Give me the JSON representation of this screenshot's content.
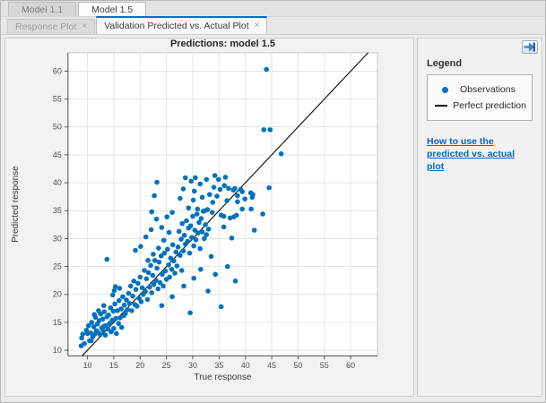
{
  "colors": {
    "accent": "#0072BD",
    "perfect_line": "#1a1a1a",
    "grid": "#e4e4e4",
    "axis": "#555555",
    "box_edge": "#c6c6c6",
    "tick_text": "#4e4e4e",
    "plot_bg": "#ffffff"
  },
  "tabs": {
    "model_tabs": [
      {
        "label": "Model 1.1",
        "active": false
      },
      {
        "label": "Model 1.5",
        "active": true
      }
    ],
    "doc_tabs": [
      {
        "label": "Response Plot",
        "close_glyph": "×",
        "active": false
      },
      {
        "label": "Validation Predicted vs. Actual Plot",
        "close_glyph": "×",
        "active": true
      }
    ]
  },
  "side_panel": {
    "legend_title": "Legend",
    "items": [
      {
        "marker": "dot",
        "label": "Observations"
      },
      {
        "marker": "line",
        "label": "Perfect prediction"
      }
    ],
    "help_link": "How to use the predicted vs. actual plot",
    "undock_icon": "undock-arrow"
  },
  "chart_data": {
    "type": "scatter",
    "title": "Predictions: model 1.5",
    "xlabel": "True response",
    "ylabel": "Predicted response",
    "xlim": [
      6.3,
      65.1
    ],
    "ylim": [
      9.0,
      63.3
    ],
    "xticks": [
      10,
      15,
      20,
      25,
      30,
      35,
      40,
      45,
      50,
      55,
      60
    ],
    "yticks": [
      10,
      15,
      20,
      25,
      30,
      35,
      40,
      45,
      50,
      55,
      60
    ],
    "grid": true,
    "legend": [
      "Observations",
      "Perfect prediction"
    ],
    "perfect_line": [
      [
        9.0,
        9.0
      ],
      [
        63.3,
        63.3
      ]
    ],
    "points": [
      [
        8.8,
        10.8
      ],
      [
        8.9,
        12.2
      ],
      [
        9.1,
        12.9
      ],
      [
        9.4,
        11.2
      ],
      [
        9.8,
        13.6
      ],
      [
        10.0,
        13.0
      ],
      [
        10.2,
        14.4
      ],
      [
        10.4,
        11.7
      ],
      [
        10.6,
        13.1
      ],
      [
        10.7,
        11.7
      ],
      [
        10.8,
        15.0
      ],
      [
        11.0,
        12.4
      ],
      [
        11.2,
        14.2
      ],
      [
        11.4,
        12.9
      ],
      [
        11.5,
        15.9
      ],
      [
        11.7,
        13.5
      ],
      [
        11.9,
        14.7
      ],
      [
        12.0,
        13.2
      ],
      [
        12.2,
        15.3
      ],
      [
        12.4,
        12.8
      ],
      [
        12.5,
        16.5
      ],
      [
        12.7,
        14.0
      ],
      [
        12.9,
        15.6
      ],
      [
        13.0,
        13.5
      ],
      [
        13.1,
        14.3
      ],
      [
        13.2,
        16.9
      ],
      [
        13.4,
        12.7
      ],
      [
        13.5,
        14.4
      ],
      [
        13.7,
        16.0
      ],
      [
        13.9,
        13.8
      ],
      [
        14.0,
        16.3
      ],
      [
        14.2,
        14.8
      ],
      [
        14.4,
        17.6
      ],
      [
        14.5,
        13.3
      ],
      [
        14.7,
        15.4
      ],
      [
        14.9,
        17.0
      ],
      [
        15.0,
        13.9
      ],
      [
        15.2,
        18.3
      ],
      [
        15.4,
        15.7
      ],
      [
        15.5,
        13.0
      ],
      [
        15.7,
        17.1
      ],
      [
        15.9,
        14.8
      ],
      [
        16.0,
        18.9
      ],
      [
        16.2,
        15.8
      ],
      [
        16.4,
        17.4
      ],
      [
        16.5,
        14.1
      ],
      [
        16.7,
        19.6
      ],
      [
        16.9,
        16.2
      ],
      [
        17.0,
        18.1
      ],
      [
        15.1,
        20.7
      ],
      [
        15.3,
        21.4
      ],
      [
        14.8,
        19.9
      ],
      [
        16.1,
        21.1
      ],
      [
        13.1,
        18.0
      ],
      [
        12.1,
        17.1
      ],
      [
        11.3,
        16.4
      ],
      [
        13.7,
        26.3
      ],
      [
        17.2,
        16.6
      ],
      [
        17.4,
        19.0
      ],
      [
        17.6,
        17.3
      ],
      [
        17.8,
        20.2
      ],
      [
        18.0,
        18.4
      ],
      [
        18.2,
        21.5
      ],
      [
        18.4,
        17.1
      ],
      [
        18.6,
        19.7
      ],
      [
        18.8,
        22.4
      ],
      [
        19.0,
        18.2
      ],
      [
        19.2,
        20.9
      ],
      [
        19.4,
        17.9
      ],
      [
        19.6,
        22.0
      ],
      [
        19.8,
        19.3
      ],
      [
        20.0,
        23.1
      ],
      [
        20.2,
        18.7
      ],
      [
        20.4,
        21.2
      ],
      [
        20.6,
        20.0
      ],
      [
        20.8,
        24.3
      ],
      [
        21.0,
        20.5
      ],
      [
        21.2,
        22.8
      ],
      [
        21.4,
        19.1
      ],
      [
        21.6,
        23.9
      ],
      [
        21.8,
        21.3
      ],
      [
        22.0,
        25.2
      ],
      [
        22.2,
        20.3
      ],
      [
        22.4,
        23.4
      ],
      [
        22.6,
        21.8
      ],
      [
        22.8,
        26.1
      ],
      [
        23.0,
        22.5
      ],
      [
        23.2,
        24.7
      ],
      [
        23.4,
        21.0
      ],
      [
        23.6,
        25.8
      ],
      [
        23.8,
        22.1
      ],
      [
        24.0,
        26.9
      ],
      [
        24.2,
        23.6
      ],
      [
        24.4,
        21.5
      ],
      [
        24.6,
        27.4
      ],
      [
        24.8,
        24.2
      ],
      [
        25.0,
        22.7
      ],
      [
        25.2,
        28.1
      ],
      [
        25.4,
        25.3
      ],
      [
        25.6,
        23.1
      ],
      [
        25.8,
        26.5
      ],
      [
        26.0,
        24.5
      ],
      [
        26.2,
        28.9
      ],
      [
        26.4,
        26.0
      ],
      [
        26.6,
        23.8
      ],
      [
        26.8,
        27.6
      ],
      [
        27.0,
        25.1
      ],
      [
        20.1,
        28.6
      ],
      [
        21.1,
        30.3
      ],
      [
        22.1,
        31.6
      ],
      [
        19.1,
        27.9
      ],
      [
        23.1,
        33.5
      ],
      [
        24.1,
        32.0
      ],
      [
        25.1,
        33.9
      ],
      [
        26.1,
        34.7
      ],
      [
        25.5,
        31.1
      ],
      [
        24.5,
        29.7
      ],
      [
        23.5,
        28.3
      ],
      [
        22.5,
        27.2
      ],
      [
        21.5,
        26.1
      ],
      [
        22.7,
        37.7
      ],
      [
        23.2,
        40.1
      ],
      [
        22.2,
        34.8
      ],
      [
        27.2,
        28.5
      ],
      [
        27.4,
        31.3
      ],
      [
        27.6,
        27.0
      ],
      [
        27.8,
        29.9
      ],
      [
        28.0,
        32.7
      ],
      [
        28.2,
        27.8
      ],
      [
        28.4,
        30.6
      ],
      [
        28.6,
        29.0
      ],
      [
        28.8,
        33.2
      ],
      [
        29.0,
        29.5
      ],
      [
        29.2,
        31.9
      ],
      [
        29.4,
        27.4
      ],
      [
        29.6,
        32.3
      ],
      [
        29.8,
        30.2
      ],
      [
        30.0,
        34.0
      ],
      [
        30.2,
        28.7
      ],
      [
        30.4,
        31.5
      ],
      [
        30.6,
        29.8
      ],
      [
        30.8,
        34.4
      ],
      [
        31.0,
        31.0
      ],
      [
        31.2,
        32.9
      ],
      [
        31.4,
        28.2
      ],
      [
        31.6,
        33.6
      ],
      [
        31.8,
        31.2
      ],
      [
        32.0,
        34.9
      ],
      [
        32.2,
        30.0
      ],
      [
        32.4,
        32.5
      ],
      [
        32.6,
        30.7
      ],
      [
        32.8,
        35.2
      ],
      [
        33.0,
        31.7
      ],
      [
        28.6,
        40.9
      ],
      [
        29.7,
        40.3
      ],
      [
        30.3,
        38.5
      ],
      [
        32.6,
        40.6
      ],
      [
        34.0,
        39.2
      ],
      [
        34.9,
        40.6
      ],
      [
        36.0,
        39.5
      ],
      [
        36.8,
        39.0
      ],
      [
        37.7,
        38.7
      ],
      [
        39.4,
        38.4
      ],
      [
        39.9,
        37.1
      ],
      [
        38.5,
        36.6
      ],
      [
        33.2,
        37.9
      ],
      [
        31.8,
        37.4
      ],
      [
        30.1,
        36.9
      ],
      [
        29.2,
        35.5
      ],
      [
        30.9,
        35.3
      ],
      [
        32.3,
        35.0
      ],
      [
        33.7,
        34.7
      ],
      [
        35.4,
        34.2
      ],
      [
        41.4,
        37.9
      ],
      [
        41.1,
        35.3
      ],
      [
        35.9,
        34.0
      ],
      [
        37.1,
        33.7
      ],
      [
        37.8,
        33.9
      ],
      [
        38.3,
        34.2
      ],
      [
        39.4,
        35.3
      ],
      [
        35.9,
        32.1
      ],
      [
        30.5,
        40.9
      ],
      [
        31.4,
        39.8
      ],
      [
        28.2,
        38.9
      ],
      [
        27.6,
        37.2
      ],
      [
        33.8,
        36.5
      ],
      [
        36.5,
        36.8
      ],
      [
        34.6,
        37.6
      ],
      [
        35.2,
        38.8
      ],
      [
        36.2,
        41.0
      ],
      [
        34.2,
        41.3
      ],
      [
        38.0,
        39.0
      ],
      [
        39.1,
        38.8
      ],
      [
        41.0,
        38.2
      ],
      [
        38.5,
        37.7
      ],
      [
        41.3,
        37.4
      ],
      [
        29.5,
        16.7
      ],
      [
        26.1,
        19.6
      ],
      [
        24.1,
        18.0
      ],
      [
        28.3,
        21.5
      ],
      [
        30.2,
        22.9
      ],
      [
        31.5,
        24.5
      ],
      [
        32.9,
        20.6
      ],
      [
        34.3,
        23.6
      ],
      [
        36.6,
        25.0
      ],
      [
        38.1,
        22.4
      ],
      [
        35.4,
        17.8
      ],
      [
        41.7,
        31.5
      ],
      [
        37.4,
        30.1
      ],
      [
        27.9,
        24.3
      ],
      [
        33.5,
        26.8
      ],
      [
        44.0,
        60.3
      ],
      [
        43.5,
        49.5
      ],
      [
        44.7,
        49.5
      ],
      [
        46.8,
        45.2
      ],
      [
        44.5,
        39.1
      ],
      [
        43.3,
        34.4
      ]
    ]
  }
}
